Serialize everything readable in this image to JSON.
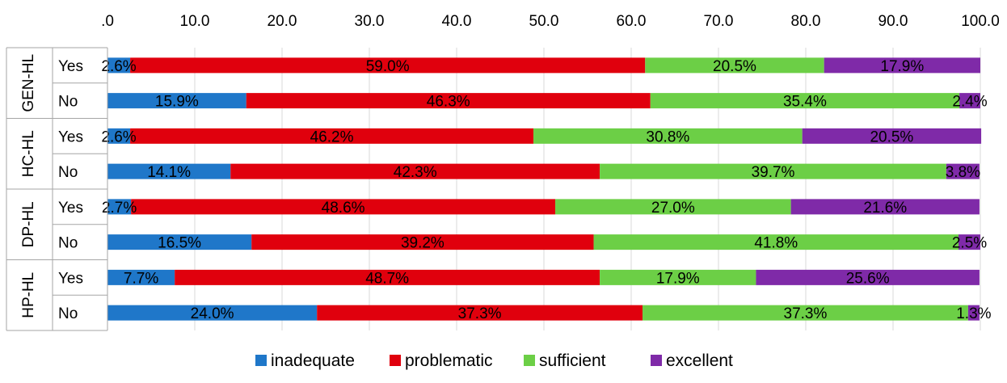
{
  "chart_data": {
    "type": "bar",
    "orientation": "horizontal",
    "stacked": true,
    "xlim": [
      0,
      100
    ],
    "x_ticks": [
      ".0",
      "10.0",
      "20.0",
      "30.0",
      "40.0",
      "50.0",
      "60.0",
      "70.0",
      "80.0",
      "90.0",
      "100.0"
    ],
    "grid": true,
    "legend_position": "bottom",
    "groups": [
      "GEN-HL",
      "HC-HL",
      "DP-HL",
      "HP-HL"
    ],
    "categories": [
      {
        "group": "GEN-HL",
        "label": "Yes"
      },
      {
        "group": "GEN-HL",
        "label": "No"
      },
      {
        "group": "HC-HL",
        "label": "Yes"
      },
      {
        "group": "HC-HL",
        "label": "No"
      },
      {
        "group": "DP-HL",
        "label": "Yes"
      },
      {
        "group": "DP-HL",
        "label": "No"
      },
      {
        "group": "HP-HL",
        "label": "Yes"
      },
      {
        "group": "HP-HL",
        "label": "No"
      }
    ],
    "series": [
      {
        "name": "inadequate",
        "color": "#1f77c9",
        "values": [
          2.6,
          15.9,
          2.6,
          14.1,
          2.7,
          16.5,
          7.7,
          24.0
        ],
        "labels": [
          "2.6%",
          "15.9%",
          "2.6%",
          "14.1%",
          "2.7%",
          "16.5%",
          "7.7%",
          "24.0%"
        ]
      },
      {
        "name": "problematic",
        "color": "#e0000d",
        "values": [
          59.0,
          46.3,
          46.2,
          42.3,
          48.6,
          39.2,
          48.7,
          37.3
        ],
        "labels": [
          "59.0%",
          "46.3%",
          "46.2%",
          "42.3%",
          "48.6%",
          "39.2%",
          "48.7%",
          "37.3%"
        ]
      },
      {
        "name": "sufficient",
        "color": "#6ccf46",
        "values": [
          20.5,
          35.4,
          30.8,
          39.7,
          27.0,
          41.8,
          17.9,
          37.3
        ],
        "labels": [
          "20.5%",
          "35.4%",
          "30.8%",
          "39.7%",
          "27.0%",
          "41.8%",
          "17.9%",
          "37.3%"
        ]
      },
      {
        "name": "excellent",
        "color": "#7f2aa8",
        "values": [
          17.9,
          2.4,
          20.5,
          3.8,
          21.6,
          2.5,
          25.6,
          1.3
        ],
        "labels": [
          "17.9%",
          "2.4%",
          "20.5%",
          "3.8%",
          "21.6%",
          "2.5%",
          "25.6%",
          "1.3%"
        ]
      }
    ]
  }
}
